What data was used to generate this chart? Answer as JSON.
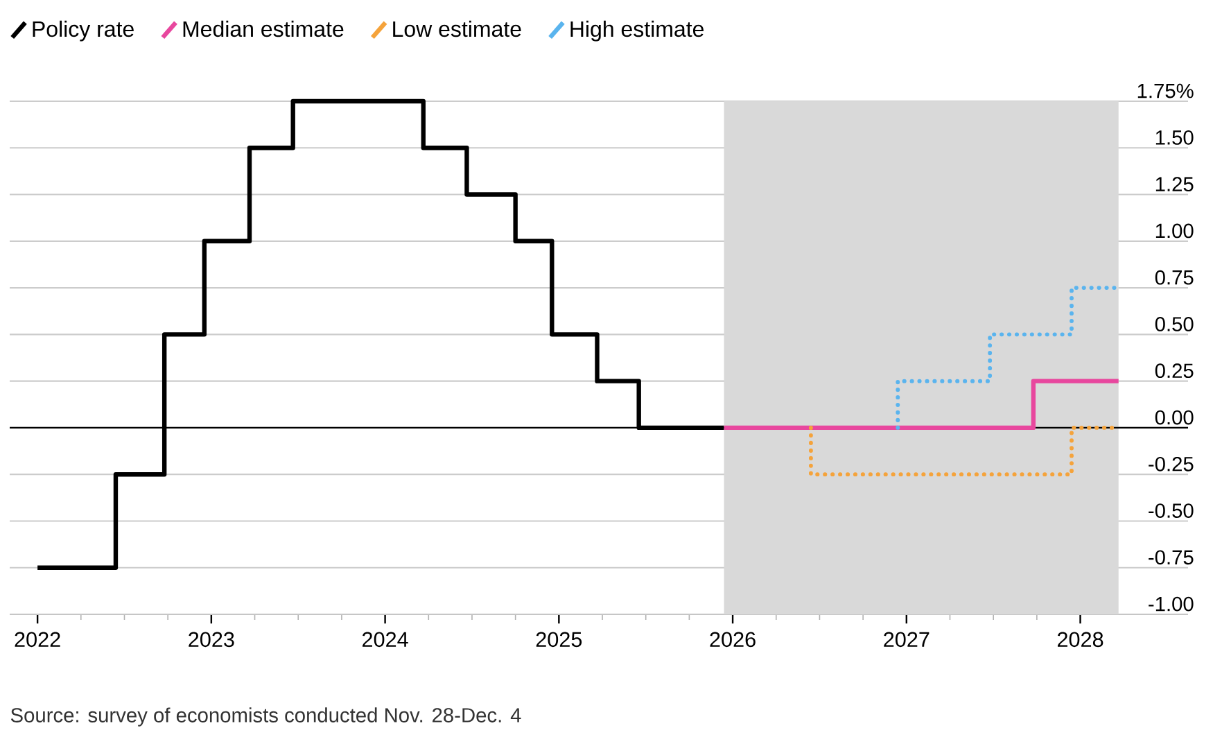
{
  "chart_data": {
    "type": "step",
    "annotations": [
      "Source: survey of economists conducted Nov. 28-Dec. 4"
    ],
    "series": [
      {
        "name": "Policy rate",
        "color": "#000000",
        "line_style": "solid",
        "x": [
          2022.0,
          2022.45,
          2022.73,
          2022.96,
          2023.22,
          2023.47,
          2024.22,
          2024.47,
          2024.75,
          2024.96,
          2025.22,
          2025.46,
          2025.95
        ],
        "values": [
          -0.75,
          -0.25,
          0.5,
          1.0,
          1.5,
          1.75,
          1.5,
          1.25,
          1.0,
          0.5,
          0.25,
          0,
          0
        ]
      },
      {
        "name": "Median estimate",
        "color": "#e8479e",
        "line_style": "solid",
        "x": [
          2025.95,
          2027.73,
          2028.22
        ],
        "values": [
          0,
          0.25,
          0.25
        ]
      },
      {
        "name": "Low estimate",
        "color": "#f5a33b",
        "line_style": "dotted",
        "x": [
          2026.45,
          2026.45,
          2027.95,
          2028.22
        ],
        "values": [
          0,
          -0.25,
          0,
          0
        ]
      },
      {
        "name": "High estimate",
        "color": "#5ab4ee",
        "line_style": "dotted",
        "x": [
          2026.95,
          2026.95,
          2027.48,
          2027.95,
          2028.22
        ],
        "values": [
          0,
          0.25,
          0.5,
          0.75,
          0.75
        ]
      }
    ],
    "xlim": [
      2021.84,
      2028.62
    ],
    "xticks": [
      2022,
      {
        "value": 2022.25,
        "label": null
      },
      {
        "value": 2022.5,
        "label": null
      },
      {
        "value": 2022.75,
        "label": null
      },
      2023,
      {
        "value": 2023.25,
        "label": null
      },
      {
        "value": 2023.5,
        "label": null
      },
      {
        "value": 2023.75,
        "label": null
      },
      2024,
      {
        "value": 2024.25,
        "label": null
      },
      {
        "value": 2024.5,
        "label": null
      },
      {
        "value": 2024.75,
        "label": null
      },
      2025,
      {
        "value": 2025.25,
        "label": null
      },
      {
        "value": 2025.5,
        "label": null
      },
      {
        "value": 2025.75,
        "label": null
      },
      2026,
      {
        "value": 2026.25,
        "label": null
      },
      {
        "value": 2026.5,
        "label": null
      },
      {
        "value": 2026.75,
        "label": null
      },
      2027,
      {
        "value": 2027.25,
        "label": null
      },
      {
        "value": 2027.5,
        "label": null
      },
      {
        "value": 2027.75,
        "label": null
      },
      2028
    ],
    "ylim": [
      -1,
      1.75
    ],
    "yticks": [
      {
        "value": -1,
        "label": "-1.00"
      },
      {
        "value": -0.75,
        "label": "-0.75"
      },
      {
        "value": -0.5,
        "label": "-0.50"
      },
      {
        "value": -0.25,
        "label": "-0.25"
      },
      {
        "value": 0,
        "label": "0.00"
      },
      {
        "value": 0.25,
        "label": "0.25"
      },
      {
        "value": 0.5,
        "label": "0.50"
      },
      {
        "value": 0.75,
        "label": "0.75"
      },
      {
        "value": 1,
        "label": "1.00"
      },
      {
        "value": 1.25,
        "label": "1.25"
      },
      {
        "value": 1.5,
        "label": "1.50"
      },
      {
        "value": 1.75,
        "label": "1.75%"
      }
    ],
    "ref_lines": [
      {
        "axis": "y",
        "value": 0,
        "color": "#000000"
      }
    ],
    "bands": [
      {
        "axis": "x",
        "from": 2025.95,
        "to": 2028.22,
        "color": "#d9d9d9"
      }
    ],
    "grid": "y",
    "legend": "top left"
  }
}
